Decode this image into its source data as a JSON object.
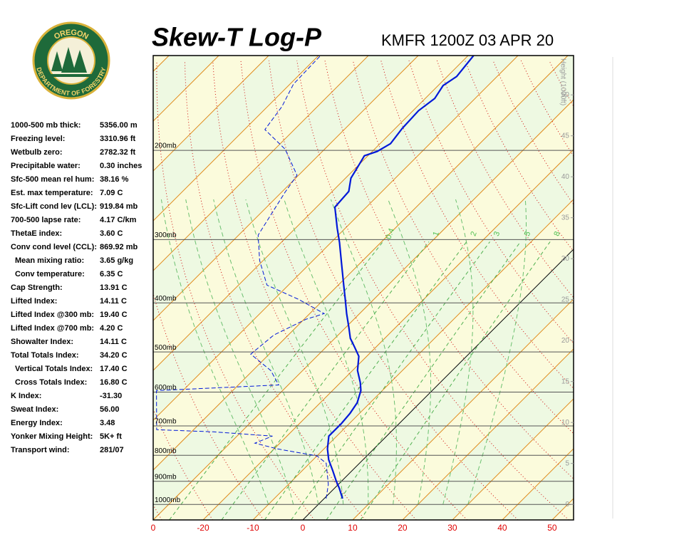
{
  "logo": {
    "top": "OREGON",
    "bottom": "DEPARTMENT OF FORESTRY"
  },
  "indices": [
    [
      "1000-500 mb thick:",
      "5356.00 m"
    ],
    [
      "Freezing level:",
      "3310.96 ft"
    ],
    [
      "Wetbulb zero:",
      "2782.32 ft"
    ],
    [
      "Precipitable water:",
      "0.30 inches"
    ],
    [
      "Sfc-500 mean rel hum:",
      "38.16 %"
    ],
    [
      "Est. max temperature:",
      "7.09 C"
    ],
    [
      "Sfc-Lift cond lev (LCL):",
      "919.84 mb"
    ],
    [
      "700-500 lapse rate:",
      "4.17 C/km"
    ],
    [
      "ThetaE index:",
      "3.60 C"
    ],
    [
      "Conv cond level (CCL):",
      "869.92 mb"
    ],
    [
      "Mean mixing ratio:",
      "3.65 g/kg"
    ],
    [
      "Conv temperature:",
      "6.35 C"
    ],
    [
      "Cap Strength:",
      "13.91 C"
    ],
    [
      "Lifted Index:",
      "14.11 C"
    ],
    [
      "Lifted Index @300 mb:",
      "19.40 C"
    ],
    [
      "Lifted Index @700 mb:",
      "4.20 C"
    ],
    [
      "Showalter Index:",
      "14.11 C"
    ],
    [
      "Total Totals Index:",
      "34.20 C"
    ],
    [
      "Vertical Totals Index:",
      "17.40 C"
    ],
    [
      "Cross Totals Index:",
      "16.80 C"
    ],
    [
      "K Index:",
      "-31.30"
    ],
    [
      "Sweat Index:",
      "56.00"
    ],
    [
      "Energy Index:",
      "3.48"
    ],
    [
      "Yonker Mixing Height:",
      "5K+ ft"
    ],
    [
      "Transport wind:",
      "281/07"
    ]
  ],
  "chart_data": {
    "type": "skew-t",
    "title": "Skew-T Log-P",
    "subtitle": "KMFR 1200Z 03 APR 20",
    "xlim": [
      -30,
      54.3
    ],
    "xticks": [
      {
        "value": -30,
        "label": "0"
      },
      -20,
      -10,
      0,
      10,
      20,
      30,
      40,
      50
    ],
    "ylim": [
      1073,
      130
    ],
    "log_y": true,
    "yticks": [
      {
        "value": 200,
        "label": "200mb"
      },
      {
        "value": 300,
        "label": "300mb"
      },
      {
        "value": 400,
        "label": "400mb"
      },
      {
        "value": 500,
        "label": "500mb"
      },
      {
        "value": 600,
        "label": "600mb"
      },
      {
        "value": 700,
        "label": "700mb"
      },
      {
        "value": 800,
        "label": "800mb"
      },
      {
        "value": 900,
        "label": "900mb"
      },
      {
        "value": 1000,
        "label": "1000mb"
      }
    ],
    "y2label": "Height (1000ft)",
    "y2lim": [
      -1.9,
      54.8
    ],
    "y2ticks": [
      0,
      5,
      10,
      15,
      20,
      25,
      30,
      35,
      40,
      45,
      50
    ],
    "mixing_ratios": [
      0.4,
      1,
      2,
      3,
      5,
      8
    ],
    "series": [
      {
        "color": "#0018d8",
        "dashed": false,
        "pressure": [
          974,
          928,
          899,
          856,
          816,
          777,
          733,
          714,
          692,
          661,
          630,
          596,
          575,
          544,
          510,
          489,
          470,
          448,
          420,
          394,
          369,
          335,
          304,
          285,
          259,
          241,
          227,
          218,
          205,
          201,
          194,
          181,
          167,
          158,
          149,
          143,
          130
        ],
        "values": [
          3.7,
          0.9,
          -1.1,
          -4.0,
          -6.9,
          -9.3,
          -11.6,
          -11.6,
          -11.6,
          -11.9,
          -12.6,
          -14.3,
          -16.0,
          -19.0,
          -21.6,
          -24.3,
          -26.9,
          -29.3,
          -32.6,
          -35.7,
          -38.9,
          -43.6,
          -48.3,
          -51.6,
          -56.3,
          -56.7,
          -58.9,
          -59.6,
          -60.7,
          -59.0,
          -57.9,
          -58.6,
          -58.9,
          -58.1,
          -59.0,
          -58.1,
          -58.9
        ]
      },
      {
        "color": "#0018d8",
        "dashed": true,
        "pressure": [
          974,
          913,
          829,
          802,
          777,
          757,
          733,
          719,
          712,
          596,
          581,
          544,
          505,
          463,
          431,
          420,
          394,
          369,
          330,
          294,
          242,
          224,
          199,
          182,
          164,
          148,
          130
        ],
        "values": [
          0.4,
          -2.0,
          -6.7,
          -10.0,
          -19.3,
          -25.0,
          -22.9,
          -35.6,
          -47.4,
          -55.3,
          -31.9,
          -36.4,
          -43.7,
          -42.9,
          -39.6,
          -37.1,
          -45.0,
          -54.3,
          -60.7,
          -66.1,
          -69.3,
          -70.3,
          -77.9,
          -85.9,
          -87.1,
          -89.3,
          -89.6
        ]
      }
    ]
  }
}
